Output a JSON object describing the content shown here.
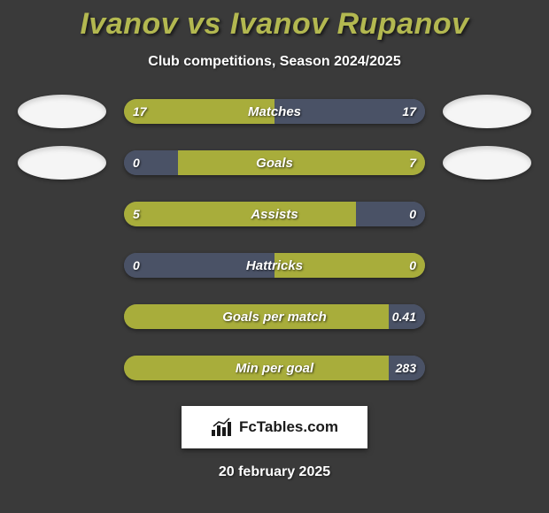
{
  "title": "Ivanov vs Ivanov Rupanov",
  "subtitle": "Club competitions, Season 2024/2025",
  "footer_brand": "FcTables.com",
  "footer_date": "20 february 2025",
  "colors": {
    "background": "#3a3a3a",
    "accent": "#b3b850",
    "left_fill": "#a8ad3b",
    "right_fill": "#4a5266",
    "track_default": "#4a5266",
    "avatar": "#f5f5f5",
    "text": "#ffffff"
  },
  "stats": [
    {
      "label": "Matches",
      "left_value": "17",
      "right_value": "17",
      "left_pct": 50,
      "right_pct": 50,
      "left_color": "#a8ad3b",
      "right_color": "#4a5266",
      "show_avatars": true
    },
    {
      "label": "Goals",
      "left_value": "0",
      "right_value": "7",
      "left_pct": 18,
      "right_pct": 82,
      "left_color": "#4a5266",
      "right_color": "#a8ad3b",
      "show_avatars": true
    },
    {
      "label": "Assists",
      "left_value": "5",
      "right_value": "0",
      "left_pct": 77,
      "right_pct": 23,
      "left_color": "#a8ad3b",
      "right_color": "#4a5266",
      "show_avatars": false
    },
    {
      "label": "Hattricks",
      "left_value": "0",
      "right_value": "0",
      "left_pct": 50,
      "right_pct": 50,
      "left_color": "#4a5266",
      "right_color": "#a8ad3b",
      "show_avatars": false
    },
    {
      "label": "Goals per match",
      "left_value": "",
      "right_value": "0.41",
      "left_pct": 88,
      "right_pct": 12,
      "left_color": "#a8ad3b",
      "right_color": "#4a5266",
      "show_avatars": false
    },
    {
      "label": "Min per goal",
      "left_value": "",
      "right_value": "283",
      "left_pct": 88,
      "right_pct": 12,
      "left_color": "#a8ad3b",
      "right_color": "#4a5266",
      "show_avatars": false
    }
  ]
}
